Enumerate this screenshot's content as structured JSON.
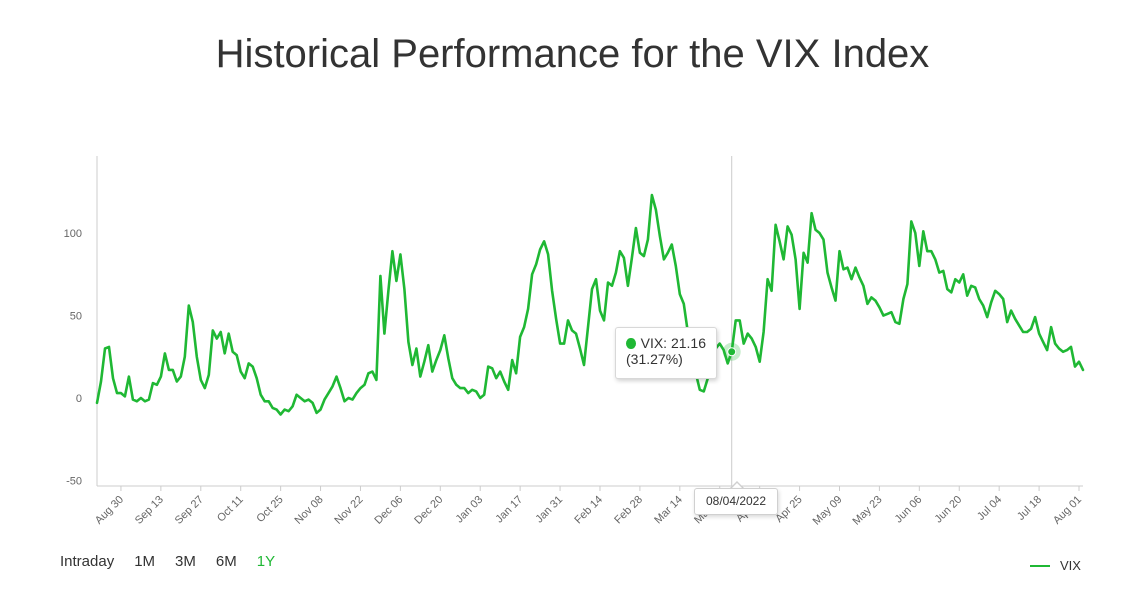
{
  "chart_data": {
    "type": "line",
    "title": "Historical Performance for the VIX Index",
    "xlabel": "",
    "ylabel": "",
    "ylim": [
      -50,
      140
    ],
    "yticks": [
      "-50",
      "0",
      "50",
      "100"
    ],
    "xtick_labels": [
      "Aug 30",
      "Sep 13",
      "Sep 27",
      "Oct 11",
      "Oct 25",
      "Nov 08",
      "Nov 22",
      "Dec 06",
      "Dec 20",
      "Jan 03",
      "Jan 17",
      "Jan 31",
      "Feb 14",
      "Feb 28",
      "Mar 14",
      "Mar 28",
      "Apr 11",
      "Apr 25",
      "May 09",
      "May 23",
      "Jun 06",
      "Jun 20",
      "Jul 04",
      "Jul 18",
      "Aug 01"
    ],
    "grid": false,
    "legend_position": "bottom-right",
    "series": [
      {
        "name": "VIX",
        "color": "#1fb834",
        "values": [
          -3,
          10,
          30,
          31,
          12,
          3,
          3,
          1,
          13,
          -1,
          -2,
          0,
          -2,
          -1,
          9,
          8,
          13,
          27,
          17,
          17,
          10,
          13,
          25,
          56,
          46,
          25,
          11,
          6,
          14,
          41,
          36,
          40,
          27,
          39,
          28,
          26,
          16,
          12,
          21,
          19,
          12,
          2,
          -2,
          -2,
          -6,
          -7,
          -10,
          -7,
          -8,
          -5,
          2,
          0,
          -2,
          -1,
          -3,
          -9,
          -7,
          -1,
          3,
          7,
          13,
          6,
          -2,
          0,
          -1,
          3,
          6,
          8,
          15,
          16,
          11,
          74,
          39,
          65,
          89,
          71,
          87,
          66,
          34,
          20,
          30,
          13,
          22,
          32,
          16,
          23,
          29,
          38,
          24,
          12,
          8,
          6,
          6,
          3,
          5,
          4,
          0,
          2,
          19,
          18,
          12,
          16,
          10,
          5,
          23,
          15,
          37,
          43,
          54,
          75,
          81,
          90,
          95,
          87,
          65,
          48,
          33,
          33,
          47,
          41,
          39,
          30,
          20,
          43,
          66,
          72,
          53,
          47,
          70,
          68,
          76,
          89,
          85,
          68,
          85,
          103,
          88,
          86,
          96,
          123,
          114,
          98,
          84,
          88,
          93,
          80,
          63,
          57,
          40,
          28,
          15,
          5,
          4,
          12,
          25,
          30,
          33,
          29,
          21,
          28,
          47,
          47,
          33,
          39,
          36,
          31,
          22,
          40,
          72,
          65,
          105,
          95,
          84,
          104,
          99,
          84,
          54,
          88,
          82,
          112,
          102,
          100,
          96,
          76,
          67,
          59,
          89,
          78,
          79,
          72,
          79,
          73,
          68,
          57,
          61,
          59,
          55,
          50,
          51,
          52,
          46,
          45,
          60,
          69,
          107,
          100,
          80,
          101,
          89,
          89,
          84,
          76,
          77,
          66,
          64,
          72,
          70,
          75,
          62,
          68,
          67,
          60,
          56,
          49,
          58,
          65,
          63,
          60,
          46,
          53,
          48,
          44,
          40,
          40,
          42,
          49,
          39,
          34,
          29,
          43,
          33,
          30,
          28,
          29,
          31,
          19,
          22,
          17
        ]
      }
    ],
    "tooltip": {
      "label": "VIX: 21.16",
      "change": "(31.27%)",
      "date": "08/04/2022"
    }
  },
  "range_buttons": [
    "Intraday",
    "1M",
    "3M",
    "6M",
    "1Y"
  ],
  "active_range": "1Y",
  "legend": {
    "label": "VIX"
  }
}
